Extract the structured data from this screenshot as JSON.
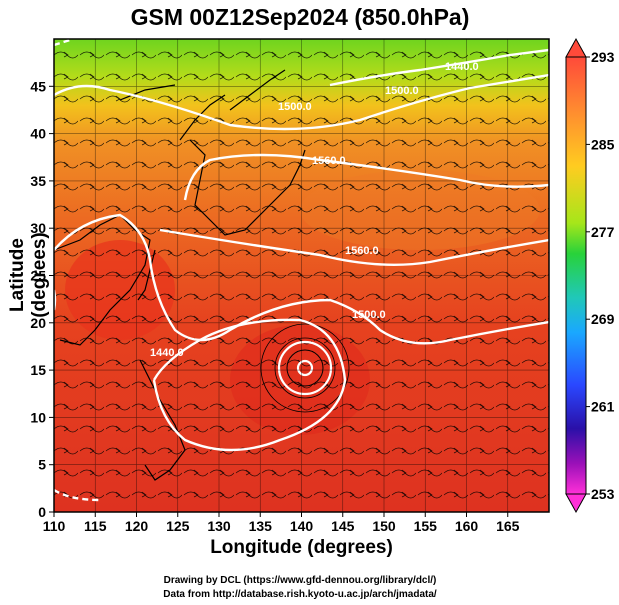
{
  "title": "GSM 00Z12Sep2024 (850.0hPa)",
  "chart_data": {
    "type": "heatmap",
    "title": "GSM 00Z12Sep2024 (850.0hPa)",
    "xlabel": "Longitude (degrees)",
    "ylabel": "Latitude  (degrees)",
    "xlim": [
      110,
      170
    ],
    "ylim": [
      0,
      50
    ],
    "x_ticks": [
      "110",
      "115",
      "120",
      "125",
      "130",
      "135",
      "140",
      "145",
      "150",
      "155",
      "160",
      "165"
    ],
    "y_ticks": [
      "0",
      "5",
      "10",
      "15",
      "20",
      "25",
      "30",
      "35",
      "40",
      "45"
    ],
    "colorbar": {
      "ticks": [
        "293",
        "285",
        "277",
        "269",
        "261",
        "253"
      ],
      "range": [
        253,
        293
      ]
    },
    "contour_labels": [
      "1440.0",
      "1500.0",
      "1560.0",
      "1560.0",
      "1500.0",
      "1440.0",
      "1500.0"
    ],
    "features": [
      "temperature shading",
      "geopotential height contours",
      "wind streamlines",
      "coastlines",
      "lat/lon grid"
    ]
  },
  "credits": {
    "line1": "Drawing by DCL (https://www.gfd-dennou.org/library/dcl/)",
    "line2": "Data from http://database.rish.kyoto-u.ac.jp/arch/jmadata/"
  }
}
